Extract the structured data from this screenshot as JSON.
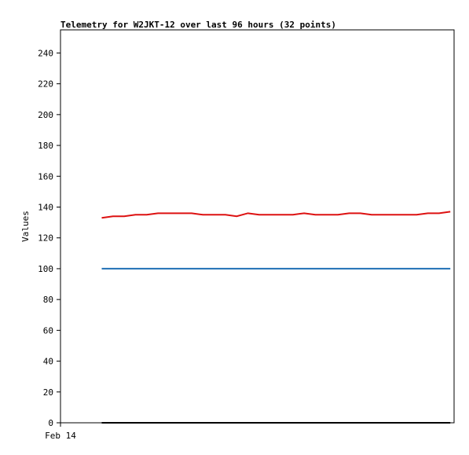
{
  "chart_data": {
    "type": "line",
    "title": "Telemetry for W2JKT-12 over last 96 hours (32 points)",
    "y_label": "Values",
    "x": [
      11,
      14,
      17,
      20,
      23,
      26,
      29,
      32,
      35,
      38,
      41,
      44,
      47,
      50,
      53,
      56,
      59,
      62,
      65,
      68,
      71,
      74,
      77,
      80,
      83,
      86,
      89,
      92,
      95,
      98,
      101,
      104
    ],
    "xlim": [
      0,
      105
    ],
    "xticks": [
      {
        "value": 0,
        "label": "Feb 14"
      }
    ],
    "ylim": [
      0,
      255
    ],
    "yticks": [
      0,
      20,
      40,
      60,
      80,
      100,
      120,
      140,
      160,
      180,
      200,
      220,
      240
    ],
    "grid": false,
    "series": [
      {
        "color": "#dd1111",
        "values": [
          133,
          134,
          134,
          135,
          135,
          136,
          136,
          136,
          136,
          135,
          135,
          135,
          134,
          136,
          135,
          135,
          135,
          135,
          136,
          135,
          135,
          135,
          136,
          136,
          135,
          135,
          135,
          135,
          135,
          136,
          136,
          137
        ]
      },
      {
        "color": "#1f6fb4",
        "values": [
          100,
          100,
          100,
          100,
          100,
          100,
          100,
          100,
          100,
          100,
          100,
          100,
          100,
          100,
          100,
          100,
          100,
          100,
          100,
          100,
          100,
          100,
          100,
          100,
          100,
          100,
          100,
          100,
          100,
          100,
          100,
          100
        ]
      },
      {
        "color": "#000000",
        "values": [
          0,
          0,
          0,
          0,
          0,
          0,
          0,
          0,
          0,
          0,
          0,
          0,
          0,
          0,
          0,
          0,
          0,
          0,
          0,
          0,
          0,
          0,
          0,
          0,
          0,
          0,
          0,
          0,
          0,
          0,
          0,
          0
        ]
      }
    ]
  }
}
